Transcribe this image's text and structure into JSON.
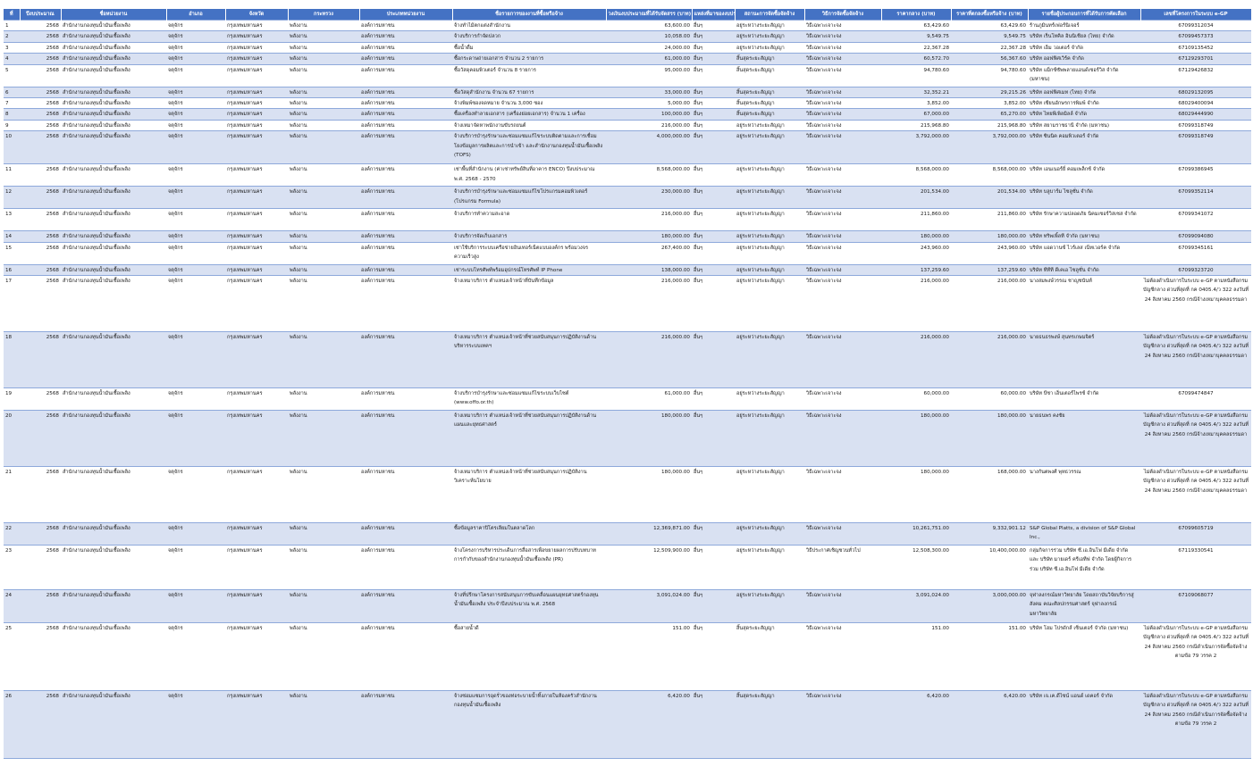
{
  "headers": [
    "ที่",
    "ปีงบประมาณ",
    "ชื่อหน่วยงาน",
    "อำเภอ",
    "จังหวัด",
    "กระทรวง",
    "ประเภทหน่วยงาน",
    "ชื่อรายการของงานที่ซื้อหรือจ้าง",
    "วงเงินงบประมาณที่ได้รับจัดสรร (บาท)",
    "แหล่งที่มาของงบประมาณ",
    "สถานะการจัดซื้อจัดจ้าง",
    "วิธีการจัดซื้อจัดจ้าง",
    "ราคากลาง (บาท)",
    "ราคาที่ตกลงซื้อหรือจ้าง (บาท)",
    "รายชื่อผู้ประกอบการที่ได้รับการคัดเลือก",
    "เลขที่โครงการในระบบ e-GP"
  ],
  "rows": [
    {
      "no": "1",
      "year": "2568",
      "agency": "สำนักงานกองทุนน้ำมันเชื้อเพลิง",
      "district": "จตุจักร",
      "province": "กรุงเทพมหานคร",
      "ministry": "พลังงาน",
      "type": "องค์การมหาชน",
      "item": "จ้างทำไม้ตกแต่งสำนักงาน",
      "budget": "63,600.00",
      "source": "อื่นๆ",
      "status": "อยู่ระหว่างระยะสัญญา",
      "method": "วิธีเฉพาะเจาะจง",
      "mid": "63,429.60",
      "price": "63,429.60",
      "vendor": "ร้านภูมินทร์เฟอร์นิเจอร์",
      "egp": "67099312034"
    },
    {
      "no": "2",
      "year": "2568",
      "agency": "สำนักงานกองทุนน้ำมันเชื้อเพลิง",
      "district": "จตุจักร",
      "province": "กรุงเทพมหานคร",
      "ministry": "พลังงาน",
      "type": "องค์การมหาชน",
      "item": "จ้างบริการกำจัดปลวก",
      "budget": "10,058.00",
      "source": "อื่นๆ",
      "status": "อยู่ระหว่างระยะสัญญา",
      "method": "วิธีเฉพาะเจาะจง",
      "mid": "9,549.75",
      "price": "9,549.75",
      "vendor": "บริษัท เร็นโทคิล อินนิเชียล (ไทย) จำกัด",
      "egp": "67099457373"
    },
    {
      "no": "3",
      "year": "2568",
      "agency": "สำนักงานกองทุนน้ำมันเชื้อเพลิง",
      "district": "จตุจักร",
      "province": "กรุงเทพมหานคร",
      "ministry": "พลังงาน",
      "type": "องค์การมหาชน",
      "item": "ซื้อน้ำดื่ม",
      "budget": "24,000.00",
      "source": "อื่นๆ",
      "status": "อยู่ระหว่างระยะสัญญา",
      "method": "วิธีเฉพาะเจาะจง",
      "mid": "22,367.28",
      "price": "22,367.28",
      "vendor": "บริษัท เอ็ม วอเตอร์ จำกัด",
      "egp": "67109135452"
    },
    {
      "no": "4",
      "year": "2568",
      "agency": "สำนักงานกองทุนน้ำมันเชื้อเพลิง",
      "district": "จตุจักร",
      "province": "กรุงเทพมหานคร",
      "ministry": "พลังงาน",
      "type": "องค์การมหาชน",
      "item": "ซื้อกระดาษถ่ายเอกสาร จำนวน 2 รายการ",
      "budget": "61,000.00",
      "source": "อื่นๆ",
      "status": "สิ้นสุดระยะสัญญา",
      "method": "วิธีเฉพาะเจาะจง",
      "mid": "60,572.70",
      "price": "56,367.60",
      "vendor": "บริษัท ออฟฟิศเวิร์ค จำกัด",
      "egp": "67129293701"
    },
    {
      "no": "5",
      "year": "2568",
      "agency": "สำนักงานกองทุนน้ำมันเชื้อเพลิง",
      "district": "จตุจักร",
      "province": "กรุงเทพมหานคร",
      "ministry": "พลังงาน",
      "type": "องค์การมหาชน",
      "item": "ซื้อวัสดุคอมพิวเตอร์ จำนวน 8 รายการ",
      "budget": "95,000.00",
      "source": "อื่นๆ",
      "status": "สิ้นสุดระยะสัญญา",
      "method": "วิธีเฉพาะเจาะจง",
      "mid": "94,780.60",
      "price": "94,780.60",
      "vendor": "บริษัท แม็กซ์ซัพพลายแอนด์เซอร์วิส จำกัด (มหาชน)",
      "egp": "67129426832"
    },
    {
      "no": "6",
      "year": "2568",
      "agency": "สำนักงานกองทุนน้ำมันเชื้อเพลิง",
      "district": "จตุจักร",
      "province": "กรุงเทพมหานคร",
      "ministry": "พลังงาน",
      "type": "องค์การมหาชน",
      "item": "ซื้อวัสดุสำนักงาน จำนวน 67 รายการ",
      "budget": "33,000.00",
      "source": "อื่นๆ",
      "status": "สิ้นสุดระยะสัญญา",
      "method": "วิธีเฉพาะเจาะจง",
      "mid": "32,352.21",
      "price": "29,215.26",
      "vendor": "บริษัท ออฟฟิศเมท (ไทย) จำกัด",
      "egp": "68029132095"
    },
    {
      "no": "7",
      "year": "2568",
      "agency": "สำนักงานกองทุนน้ำมันเชื้อเพลิง",
      "district": "จตุจักร",
      "province": "กรุงเทพมหานคร",
      "ministry": "พลังงาน",
      "type": "องค์การมหาชน",
      "item": "จ้างพิมพ์ซองจดหมาย จำนวน 3,000 ซอง",
      "budget": "5,000.00",
      "source": "อื่นๆ",
      "status": "สิ้นสุดระยะสัญญา",
      "method": "วิธีเฉพาะเจาะจง",
      "mid": "3,852.00",
      "price": "3,852.00",
      "vendor": "บริษัท เซียนอักษรการพิมพ์ จำกัด",
      "egp": "68029400094"
    },
    {
      "no": "8",
      "year": "2568",
      "agency": "สำนักงานกองทุนน้ำมันเชื้อเพลิง",
      "district": "จตุจักร",
      "province": "กรุงเทพมหานคร",
      "ministry": "พลังงาน",
      "type": "องค์การมหาชน",
      "item": "ซื้อเครื่องทำลายเอกสาร (เครื่องย่อยเอกสาร) จำนวน 1 เครื่อง",
      "budget": "100,000.00",
      "source": "อื่นๆ",
      "status": "สิ้นสุดระยะสัญญา",
      "method": "วิธีเฉพาะเจาะจง",
      "mid": "67,000.00",
      "price": "65,270.00",
      "vendor": "บริษัท ไทยพีเพิลมิลล์ จำกัด",
      "egp": "68029444990"
    },
    {
      "no": "9",
      "year": "2568",
      "agency": "สำนักงานกองทุนน้ำมันเชื้อเพลิง",
      "district": "จตุจักร",
      "province": "กรุงเทพมหานคร",
      "ministry": "พลังงาน",
      "type": "องค์การมหาชน",
      "item": "จ้างเหมาจัดหาพนักงานขับรถยนต์",
      "budget": "216,000.00",
      "source": "อื่นๆ",
      "status": "อยู่ระหว่างระยะสัญญา",
      "method": "วิธีเฉพาะเจาะจง",
      "mid": "215,968.80",
      "price": "215,968.80",
      "vendor": "บริษัท สยามราชธานี จำกัด (มหาชน)",
      "egp": "67099318749"
    },
    {
      "no": "10",
      "year": "2568",
      "agency": "สำนักงานกองทุนน้ำมันเชื้อเพลิง",
      "district": "จตุจักร",
      "province": "กรุงเทพมหานคร",
      "ministry": "พลังงาน",
      "type": "องค์การมหาชน",
      "item": "จ้างบริการบำรุงรักษาและซ่อมแซมแก้ไขระบบติดตามและการเชื่อมโยงข้อมูลการผลิตและการนำเข้า และสำนักงานกองทุนน้ำมันเชื้อเพลิง (TOFS)",
      "budget": "4,000,000.00",
      "source": "อื่นๆ",
      "status": "อยู่ระหว่างระยะสัญญา",
      "method": "วิธีเฉพาะเจาะจง",
      "mid": "3,792,000.00",
      "price": "3,792,000.00",
      "vendor": "บริษัท ซินนิค คอมพิวเตอร์ จำกัด",
      "egp": "67099318749"
    },
    {
      "no": "11",
      "year": "2568",
      "agency": "สำนักงานกองทุนน้ำมันเชื้อเพลิง",
      "district": "จตุจักร",
      "province": "กรุงเทพมหานคร",
      "ministry": "พลังงาน",
      "type": "องค์การมหาชน",
      "item": "เช่าพื้นที่สำนักงาน (ค่าเช่าทรัพย์สินที่อาคาร ENCO) ปีงบประมาณ พ.ศ. 2568 - 2570",
      "budget": "8,568,000.00",
      "source": "อื่นๆ",
      "status": "อยู่ระหว่างระยะสัญญา",
      "method": "วิธีเฉพาะเจาะจง",
      "mid": "8,568,000.00",
      "price": "8,568,000.00",
      "vendor": "บริษัท เอนเนอร์ยี่ คอมเพล็กซ์ จำกัด",
      "egp": "67099386945"
    },
    {
      "no": "12",
      "year": "2568",
      "agency": "สำนักงานกองทุนน้ำมันเชื้อเพลิง",
      "district": "จตุจักร",
      "province": "กรุงเทพมหานคร",
      "ministry": "พลังงาน",
      "type": "องค์การมหาชน",
      "item": "จ้างบริการบำรุงรักษาและซ่อมแซมแก้ไขโปรแกรมคอมพิวเตอร์ (โปรแกรม Formula)",
      "budget": "230,000.00",
      "source": "อื่นๆ",
      "status": "อยู่ระหว่างระยะสัญญา",
      "method": "วิธีเฉพาะเจาะจง",
      "mid": "201,534.00",
      "price": "201,534.00",
      "vendor": "บริษัท บลูบาร์ม ไซลูชั่น จำกัด",
      "egp": "67099352114"
    },
    {
      "no": "13",
      "year": "2568",
      "agency": "สำนักงานกองทุนน้ำมันเชื้อเพลิง",
      "district": "จตุจักร",
      "province": "กรุงเทพมหานคร",
      "ministry": "พลังงาน",
      "type": "องค์การมหาชน",
      "item": "จ้างบริการทำความสะอาด",
      "budget": "216,000.00",
      "source": "อื่นๆ",
      "status": "อยู่ระหว่างระยะสัญญา",
      "method": "วิธีเฉพาะเจาะจง",
      "mid": "211,860.00",
      "price": "211,860.00",
      "vendor": "บริษัท รักษาความปลอดภัย นิคมเซอร์วิสเซส จำกัด",
      "egp": "67099341072"
    },
    {
      "no": "14",
      "year": "2568",
      "agency": "สำนักงานกองทุนน้ำมันเชื้อเพลิง",
      "district": "จตุจักร",
      "province": "กรุงเทพมหานคร",
      "ministry": "พลังงาน",
      "type": "องค์การมหาชน",
      "item": "จ้างบริการจัดเก็บเอกสาร",
      "budget": "180,000.00",
      "source": "อื่นๆ",
      "status": "อยู่ระหว่างระยะสัญญา",
      "method": "วิธีเฉพาะเจาะจง",
      "mid": "180,000.00",
      "price": "180,000.00",
      "vendor": "บริษัท ทริพเพิ้ลที จำกัด (มหาชน)",
      "egp": "67099094080"
    },
    {
      "no": "15",
      "year": "2568",
      "agency": "สำนักงานกองทุนน้ำมันเชื้อเพลิง",
      "district": "จตุจักร",
      "province": "กรุงเทพมหานคร",
      "ministry": "พลังงาน",
      "type": "องค์การมหาชน",
      "item": "เช่าใช้บริการระบบเครือข่ายอินเทอร์เน็ตแบบองค์กร พร้อมวงจรความเร็วสูง",
      "budget": "267,400.00",
      "source": "อื่นๆ",
      "status": "อยู่ระหว่างระยะสัญญา",
      "method": "วิธีเฉพาะเจาะจง",
      "mid": "243,960.00",
      "price": "243,960.00",
      "vendor": "บริษัท แอดวานซ์ ไวร์เลส เน็ทเวอร์ค จำกัด",
      "egp": "67099345161"
    },
    {
      "no": "16",
      "year": "2568",
      "agency": "สำนักงานกองทุนน้ำมันเชื้อเพลิง",
      "district": "จตุจักร",
      "province": "กรุงเทพมหานคร",
      "ministry": "พลังงาน",
      "type": "องค์การมหาชน",
      "item": "เช่าระบบโทรศัพท์พร้อมอุปกรณ์โทรศัพท์ IP Phone",
      "budget": "138,000.00",
      "source": "อื่นๆ",
      "status": "อยู่ระหว่างระยะสัญญา",
      "method": "วิธีเฉพาะเจาะจง",
      "mid": "137,259.60",
      "price": "137,259.60",
      "vendor": "บริษัท ทีทีที ดีเคเอ ไซลูชั่น จำกัด",
      "egp": "67099323720"
    },
    {
      "no": "17",
      "year": "2568",
      "agency": "สำนักงานกองทุนน้ำมันเชื้อเพลิง",
      "district": "จตุจักร",
      "province": "กรุงเทพมหานคร",
      "ministry": "พลังงาน",
      "type": "องค์การมหาชน",
      "item": "จ้างเหมาบริการ ตำแหน่งเจ้าหน้าที่บันทึกข้อมูล",
      "budget": "216,000.00",
      "source": "อื่นๆ",
      "status": "อยู่ระหว่างระยะสัญญา",
      "method": "วิธีเฉพาะเจาะจง",
      "mid": "216,000.00",
      "price": "216,000.00",
      "vendor": "นางสมพงษ์วรรณ ชาญชนันท์",
      "egp": "ไม่ต้องดำเนินการในระบบ e-GP ตามหนังสือกรมบัญชีกลาง ด่วนที่สุดที่ กค 0405.4/ว 322 ลงวันที่ 24 สิงหาคม 2560 กรณีจ้างเหมาบุคคลธรรมดา"
    },
    {
      "no": "18",
      "year": "2568",
      "agency": "สำนักงานกองทุนน้ำมันเชื้อเพลิง",
      "district": "จตุจักร",
      "province": "กรุงเทพมหานคร",
      "ministry": "พลังงาน",
      "type": "องค์การมหาชน",
      "item": "จ้างเหมาบริการ ตำแหน่งเจ้าหน้าที่ช่วยสนับสนุนการปฏิบัติงานด้านบริหารระบบเทคฯ",
      "budget": "216,000.00",
      "source": "อื่นๆ",
      "status": "อยู่ระหว่างระยะสัญญา",
      "method": "วิธีเฉพาะเจาะจง",
      "mid": "216,000.00",
      "price": "216,000.00",
      "vendor": "นายธนธรพงษ์ สุนทรเกษมจิตร์",
      "egp": "ไม่ต้องดำเนินการในระบบ e-GP ตามหนังสือกรมบัญชีกลาง ด่วนที่สุดที่ กค 0405.4/ว 322 ลงวันที่ 24 สิงหาคม 2560 กรณีจ้างเหมาบุคคลธรรมดา"
    },
    {
      "no": "19",
      "year": "2568",
      "agency": "สำนักงานกองทุนน้ำมันเชื้อเพลิง",
      "district": "จตุจักร",
      "province": "กรุงเทพมหานคร",
      "ministry": "พลังงาน",
      "type": "องค์การมหาชน",
      "item": "จ้างบริการบำรุงรักษาและซ่อมแซมแก้ไขระบบเว็บไซต์ (www.offo.or.th)",
      "budget": "61,000.00",
      "source": "อื่นๆ",
      "status": "อยู่ระหว่างระยะสัญญา",
      "method": "วิธีเฉพาะเจาะจง",
      "mid": "60,000.00",
      "price": "60,000.00",
      "vendor": "บริษัท บีซา เอ็นเตอร์ไพรซ์ จำกัด",
      "egp": "67099474847"
    },
    {
      "no": "20",
      "year": "2568",
      "agency": "สำนักงานกองทุนน้ำมันเชื้อเพลิง",
      "district": "จตุจักร",
      "province": "กรุงเทพมหานคร",
      "ministry": "พลังงาน",
      "type": "องค์การมหาชน",
      "item": "จ้างเหมาบริการ ตำแหน่งเจ้าหน้าที่ช่วยสนับสนุนการปฏิบัติงานด้านแผนและยุทธศาสตร์",
      "budget": "180,000.00",
      "source": "อื่นๆ",
      "status": "อยู่ระหว่างระยะสัญญา",
      "method": "วิธีเฉพาะเจาะจง",
      "mid": "180,000.00",
      "price": "180,000.00",
      "vendor": "นายธนพร คงชัย",
      "egp": "ไม่ต้องดำเนินการในระบบ e-GP ตามหนังสือกรมบัญชีกลาง ด่วนที่สุดที่ กค 0405.4/ว 322 ลงวันที่ 24 สิงหาคม 2560 กรณีจ้างเหมาบุคคลธรรมดา"
    },
    {
      "no": "21",
      "year": "2568",
      "agency": "สำนักงานกองทุนน้ำมันเชื้อเพลิง",
      "district": "จตุจักร",
      "province": "กรุงเทพมหานคร",
      "ministry": "พลังงาน",
      "type": "องค์การมหาชน",
      "item": "จ้างเหมาบริการ ตำแหน่งเจ้าหน้าที่ช่วยสนับสนุนการปฏิบัติงานวิเคราะห์นโยบาย",
      "budget": "180,000.00",
      "source": "อื่นๆ",
      "status": "อยู่ระหว่างระยะสัญญา",
      "method": "วิธีเฉพาะเจาะจง",
      "mid": "180,000.00",
      "price": "168,000.00",
      "vendor": "นางกันตพงศ์ พุทธวรรณ",
      "egp": "ไม่ต้องดำเนินการในระบบ e-GP ตามหนังสือกรมบัญชีกลาง ด่วนที่สุดที่ กค 0405.4/ว 322 ลงวันที่ 24 สิงหาคม 2560 กรณีจ้างเหมาบุคคลธรรมดา"
    },
    {
      "no": "22",
      "year": "2568",
      "agency": "สำนักงานกองทุนน้ำมันเชื้อเพลิง",
      "district": "จตุจักร",
      "province": "กรุงเทพมหานคร",
      "ministry": "พลังงาน",
      "type": "องค์การมหาชน",
      "item": "ซื้อข้อมูลราคาปิโตรเลียมในตลาดโลก",
      "budget": "12,369,871.00",
      "source": "อื่นๆ",
      "status": "อยู่ระหว่างระยะสัญญา",
      "method": "วิธีเฉพาะเจาะจง",
      "mid": "10,261,751.00",
      "price": "9,332,901.12",
      "vendor": "S&P Global Platts, a division of S&P Global Inc.,",
      "egp": "67099605719"
    },
    {
      "no": "23",
      "year": "2568",
      "agency": "สำนักงานกองทุนน้ำมันเชื้อเพลิง",
      "district": "จตุจักร",
      "province": "กรุงเทพมหานคร",
      "ministry": "พลังงาน",
      "type": "องค์การมหาชน",
      "item": "จ้างโครงการบริหารประเด็นการสื่อสารเพื่อขยายผลการปรับบทบาทการกำกับของสำนักงานกองทุนน้ำมันเชื้อเพลิง (PR)",
      "budget": "12,509,900.00",
      "source": "อื่นๆ",
      "status": "อยู่ระหว่างระยะสัญญา",
      "method": "วิธีประกาศเชิญชวนทั่วไป",
      "mid": "12,508,300.00",
      "price": "10,400,000.00",
      "vendor": "กลุ่มกิจการร่วม บริษัท ซี.เอ.อินโฟ มีเดีย จำกัด และ บริษัท มายเดร์ ครีเอทีฟ จำกัด โดยผู้กิจการร่วม บริษัท ซี.เอ.อินโฟ มีเดีย จำกัด",
      "egp": "67119330541"
    },
    {
      "no": "24",
      "year": "2568",
      "agency": "สำนักงานกองทุนน้ำมันเชื้อเพลิง",
      "district": "จตุจักร",
      "province": "กรุงเทพมหานคร",
      "ministry": "พลังงาน",
      "type": "องค์การมหาชน",
      "item": "จ้างที่ปรึกษาโครงการสนับสนุนการขับเคลื่อนแผนยุทธศาสตร์กองทุนน้ำมันเชื้อเพลิง ประจำปีงบประมาณ พ.ศ. 2568",
      "budget": "3,091,024.00",
      "source": "อื่นๆ",
      "status": "อยู่ระหว่างระยะสัญญา",
      "method": "วิธีเฉพาะเจาะจง",
      "mid": "3,091,024.00",
      "price": "3,000,000.00",
      "vendor": "จุฬาลงกรณ์มหาวิทยาลัย โดยสถาบันวิจัยบริการสู่สังคม คณะศิลปกรรมศาสตร์ จุฬาลงกรณ์มหาวิทยาลัย",
      "egp": "67109068077"
    },
    {
      "no": "25",
      "year": "2568",
      "agency": "สำนักงานกองทุนน้ำมันเชื้อเพลิง",
      "district": "จตุจักร",
      "province": "กรุงเทพมหานคร",
      "ministry": "พลังงาน",
      "type": "องค์การมหาชน",
      "item": "ซื้อสายน้ำดี",
      "budget": "151.00",
      "source": "อื่นๆ",
      "status": "สิ้นสุดระยะสัญญา",
      "method": "วิธีเฉพาะเจาะจง",
      "mid": "151.00",
      "price": "151.00",
      "vendor": "บริษัท โฮม โปรดักส์ เซ็นเตอร์ จำกัด (มหาชน)",
      "egp": "ไม่ต้องดำเนินการในระบบ e-GP ตามหนังสือกรมบัญชีกลาง ด่วนที่สุดที่ กค 0405.4/ว 322 ลงวันที่ 24 สิงหาคม 2560 กรณีดำเนินการจัดซื้อจัดจ้างตามข้อ 79 วรรค 2"
    },
    {
      "no": "26",
      "year": "2568",
      "agency": "สำนักงานกองทุนน้ำมันเชื้อเพลิง",
      "district": "จตุจักร",
      "province": "กรุงเทพมหานคร",
      "ministry": "พลังงาน",
      "type": "องค์การมหาชน",
      "item": "จ้างซ่อมแซมการอุดรั่วของท่อระบายน้ำทิ้งภายในห้องครัวสำนักงานกองทุนน้ำมันเชื้อเพลิง",
      "budget": "6,420.00",
      "source": "อื่นๆ",
      "status": "สิ้นสุดระยะสัญญา",
      "method": "วิธีเฉพาะเจาะจง",
      "mid": "6,420.00",
      "price": "6,420.00",
      "vendor": "บริษัท เจ.เค.ดีไซน์ แอนด์ เดคอร์ จำกัด",
      "egp": "ไม่ต้องดำเนินการในระบบ e-GP ตามหนังสือกรมบัญชีกลาง ด่วนที่สุดที่ กค 0405.4/ว 322 ลงวันที่ 24 สิงหาคม 2560 กรณีดำเนินการจัดซื้อจัดจ้างตามข้อ 79 วรรค 2"
    }
  ]
}
